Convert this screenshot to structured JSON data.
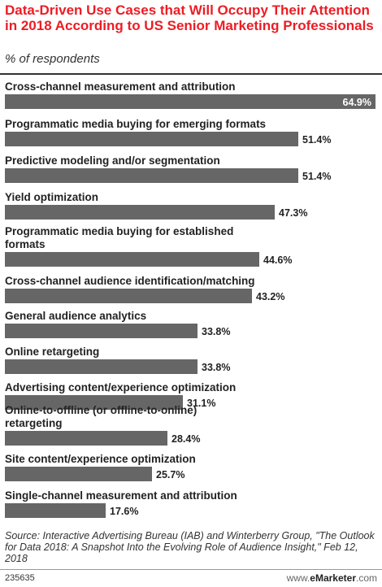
{
  "header": {
    "title": "Data-Driven Use Cases that Will Occupy Their Attention in 2018 According to US Senior Marketing Professionals",
    "subtitle": "% of respondents"
  },
  "chart_data": {
    "type": "bar",
    "orientation": "horizontal",
    "categories": [
      "Cross-channel measurement and attribution",
      "Programmatic media buying for emerging formats",
      "Predictive modeling and/or segmentation",
      "Yield optimization",
      "Programmatic media buying for established formats",
      "Cross-channel audience identification/matching",
      "General audience analytics",
      "Online retargeting",
      "Advertising content/experience optimization",
      "Online-to-offline (or offline-to-online) retargeting",
      "Site content/experience optimization",
      "Single-channel measurement and attribution"
    ],
    "values": [
      64.9,
      51.4,
      51.4,
      47.3,
      44.6,
      43.2,
      33.8,
      33.8,
      31.1,
      28.4,
      25.7,
      17.6
    ],
    "value_labels": [
      "64.9%",
      "51.4%",
      "51.4%",
      "47.3%",
      "44.6%",
      "43.2%",
      "33.8%",
      "33.8%",
      "31.1%",
      "28.4%",
      "25.7%",
      "17.6%"
    ],
    "bar_color": "#666666",
    "xlim": [
      0,
      64.9
    ]
  },
  "footer": {
    "source": "Source: Interactive Advertising Bureau (IAB) and Winterberry Group, \"The Outlook for Data 2018: A Snapshot Into the Evolving Role of Audience Insight,\" Feb 12, 2018",
    "chart_id": "235635",
    "brand_prefix": "www.",
    "brand_name": "eMarketer",
    "brand_suffix": ".com"
  },
  "colors": {
    "title": "#ED1C24",
    "bar": "#666666"
  }
}
